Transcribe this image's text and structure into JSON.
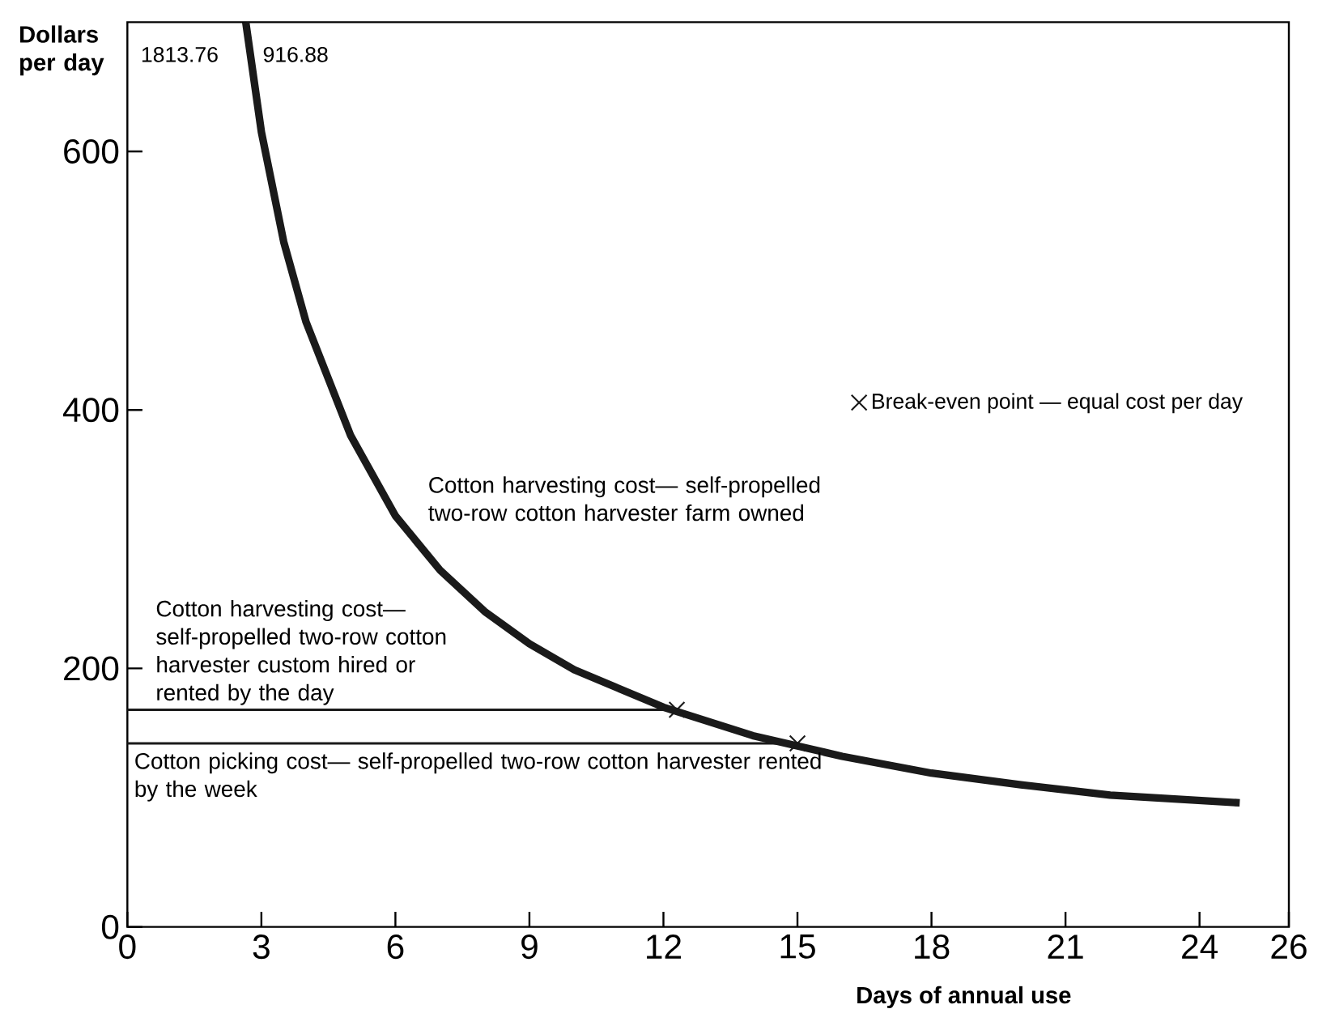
{
  "chart_data": {
    "type": "line",
    "xlabel": "Days of annual use",
    "ylabel": "Dollars per day",
    "xlim": [
      0,
      26
    ],
    "xticks": [
      0,
      3,
      6,
      9,
      12,
      15,
      18,
      21,
      24,
      26
    ],
    "ylim": [
      0,
      700
    ],
    "yticks": [
      0,
      200,
      400,
      600
    ],
    "grid": false,
    "legend": "top right",
    "marker": "none",
    "line_style": "solid",
    "series": [
      {
        "name": "Cotton harvesting cost— self-propelled two-row cotton harvester farm owned",
        "color": "#1a1a1a",
        "x": [
          2.65,
          3,
          3.5,
          4,
          5,
          6,
          7,
          8,
          9,
          10,
          12,
          14,
          16,
          18,
          20,
          22,
          24.9
        ],
        "values": [
          700,
          615,
          530,
          468,
          380,
          318,
          276,
          244,
          219,
          199,
          170,
          148,
          132,
          119,
          110,
          102,
          96
        ]
      },
      {
        "name": "Cotton harvesting cost— self-propelled two-row cotton harvester custom hired or rented by the day",
        "color": "#1a1a1a",
        "x": [
          0,
          12.3
        ],
        "values": [
          168,
          168
        ]
      },
      {
        "name": "Cotton picking cost— self-propelled two-row cotton harvester rented by the week",
        "color": "#1a1a1a",
        "x": [
          0,
          15
        ],
        "values": [
          142,
          142
        ]
      },
      {
        "name": "Break-even point — equal cost per day",
        "type": "scatter",
        "marker": "cross",
        "color": "#1a1a1a",
        "x": [
          12.3,
          15
        ],
        "values": [
          168,
          142
        ]
      }
    ],
    "annotations": [
      "1813.76",
      "916.88"
    ]
  }
}
